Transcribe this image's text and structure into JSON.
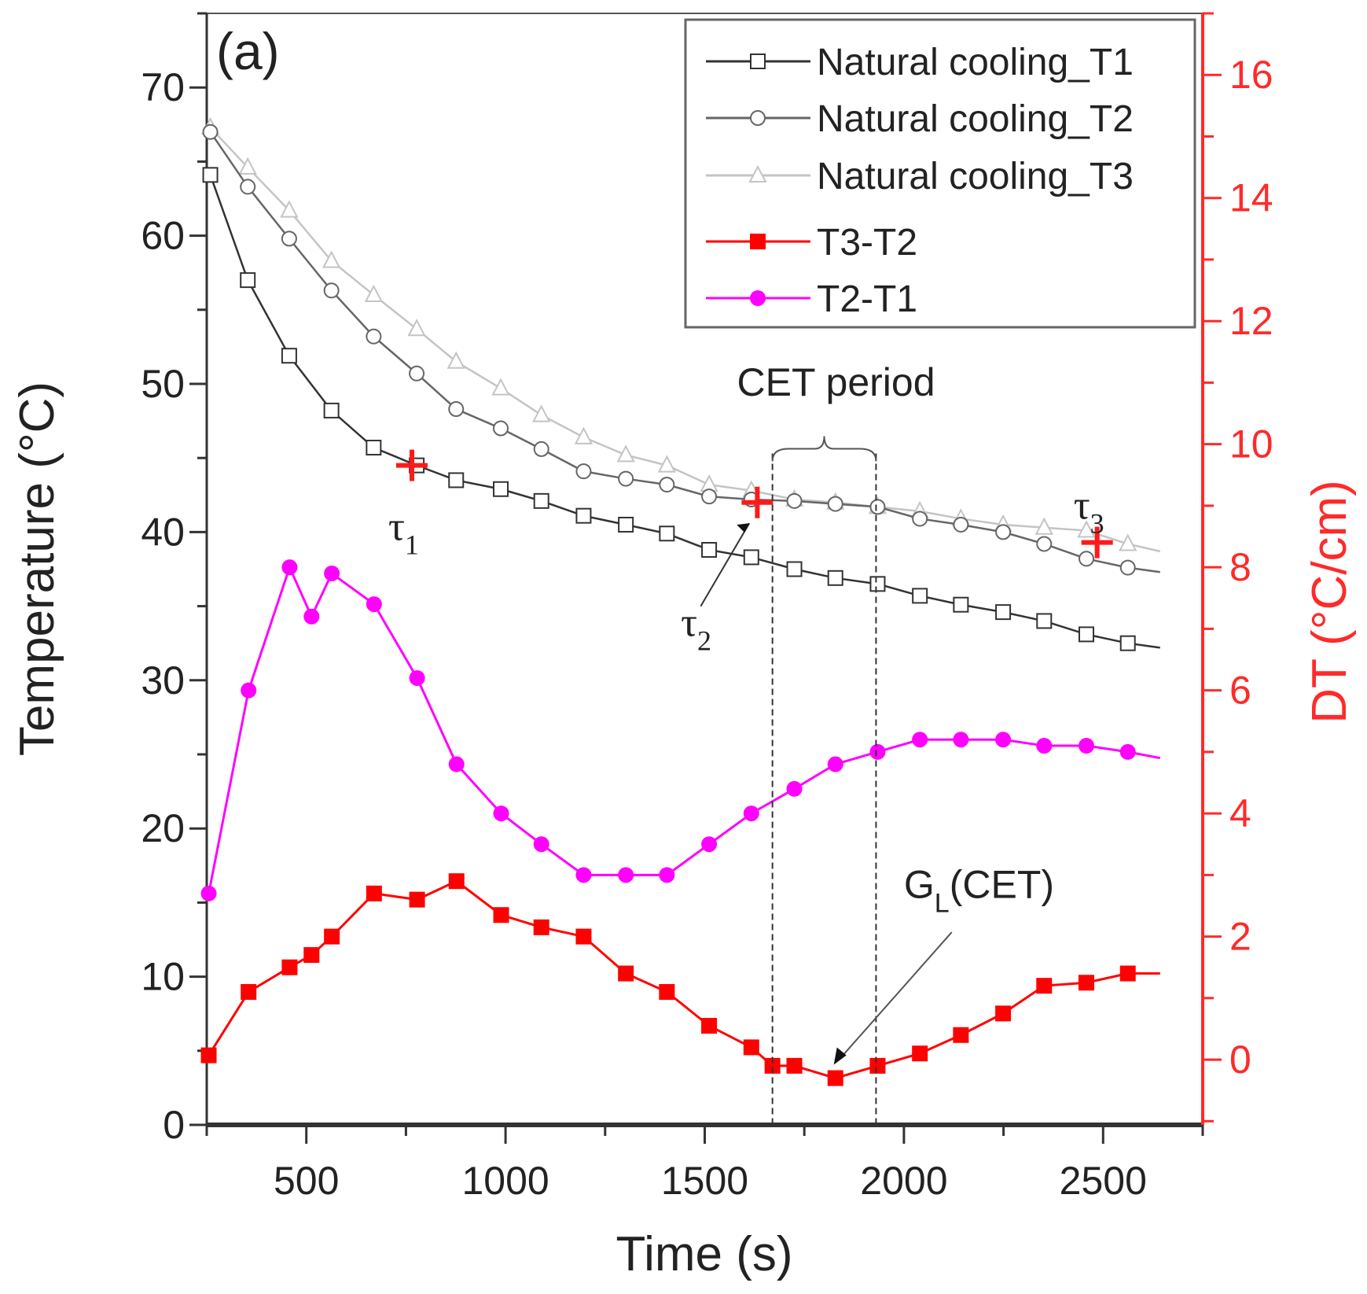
{
  "chart_data": {
    "type": "line",
    "panel_label": "(a)",
    "xlabel": "Time (s)",
    "ylabel": "Temperature (°C)",
    "y2label": "DT (°C/cm)",
    "xlim": [
      250,
      2750
    ],
    "ylim": [
      0,
      75
    ],
    "y2lim": [
      -1.06,
      17
    ],
    "xticks": [
      500,
      1000,
      1500,
      2000,
      2500
    ],
    "yticks": [
      0,
      10,
      20,
      30,
      40,
      50,
      60,
      70
    ],
    "y2ticks": [
      0,
      2,
      4,
      6,
      8,
      10,
      12,
      14,
      16
    ],
    "legend_position": "top-right",
    "x": [
      259,
      353,
      457,
      563,
      669,
      777,
      876,
      988,
      1090,
      1196,
      1302,
      1405,
      1511,
      1617,
      1725,
      1828,
      1934,
      2040,
      2143,
      2249,
      2352,
      2458,
      2562,
      2643
    ],
    "series": [
      {
        "name": "Natural cooling_T1",
        "axis": "left",
        "color": "#333333",
        "marker": "square",
        "values": [
          64.1,
          57,
          51.9,
          48.2,
          45.7,
          44.5,
          43.5,
          42.9,
          42.1,
          41.1,
          40.5,
          39.9,
          38.8,
          38.3,
          37.5,
          36.9,
          36.5,
          35.7,
          35.1,
          34.6,
          34,
          33.1,
          32.5,
          32.2
        ]
      },
      {
        "name": "Natural cooling_T2",
        "axis": "left",
        "color": "#666666",
        "marker": "circle",
        "values": [
          67,
          63.3,
          59.8,
          56.3,
          53.2,
          50.7,
          48.3,
          47,
          45.6,
          44.1,
          43.6,
          43.2,
          42.4,
          42.2,
          42.1,
          41.9,
          41.7,
          40.9,
          40.5,
          40,
          39.2,
          38.2,
          37.6,
          37.3
        ]
      },
      {
        "name": "Natural cooling_T3",
        "axis": "left",
        "color": "#c4c4c4",
        "marker": "triangle",
        "values": [
          67.3,
          64.6,
          61.7,
          58.3,
          56,
          53.7,
          51.5,
          49.7,
          47.9,
          46.4,
          45.2,
          44.5,
          43.2,
          42.8,
          42.2,
          42,
          41.7,
          41.4,
          40.9,
          40.5,
          40.3,
          40.1,
          39.2,
          38.7
        ]
      },
      {
        "name": "T3-T2",
        "axis": "right",
        "color": "#ff0000",
        "marker": "filled-square",
        "x": [
          255,
          355,
          458,
          513,
          564,
          670,
          778,
          877,
          989,
          1090,
          1196,
          1302,
          1405,
          1511,
          1617,
          1670,
          1725,
          1828,
          1934,
          2040,
          2143,
          2249,
          2352,
          2458,
          2562,
          2643
        ],
        "values": [
          0.07,
          1.1,
          1.5,
          1.7,
          2.0,
          2.7,
          2.6,
          2.9,
          2.35,
          2.15,
          2.0,
          1.4,
          1.1,
          0.55,
          0.2,
          -0.1,
          -0.1,
          -0.3,
          -0.1,
          0.1,
          0.4,
          0.75,
          1.2,
          1.25,
          1.4,
          1.4
        ]
      },
      {
        "name": "T2-T1",
        "axis": "right",
        "color": "#ff00ff",
        "marker": "filled-circle",
        "x": [
          255,
          355,
          458,
          513,
          564,
          670,
          778,
          877,
          989,
          1090,
          1196,
          1302,
          1405,
          1511,
          1617,
          1725,
          1828,
          1934,
          2040,
          2143,
          2249,
          2352,
          2458,
          2562,
          2643
        ],
        "values": [
          2.7,
          6.0,
          8.0,
          7.2,
          7.9,
          7.4,
          6.2,
          4.8,
          4.0,
          3.5,
          3.0,
          3.0,
          3.0,
          3.5,
          4.0,
          4.4,
          4.8,
          5.0,
          5.2,
          5.2,
          5.2,
          5.1,
          5.1,
          5.0,
          4.9
        ]
      }
    ],
    "annotations": {
      "tau1": {
        "label": "τ",
        "sub": "1",
        "x": 765,
        "y": 44.5
      },
      "tau2": {
        "label": "τ",
        "sub": "2",
        "x": 1632,
        "y": 42.0
      },
      "tau3": {
        "label": "τ",
        "sub": "3",
        "x": 2485,
        "y": 39.3
      },
      "cet_period": {
        "label": "CET period",
        "x_start": 1670,
        "x_end": 1930
      },
      "gl_cet": {
        "label_main": "G",
        "label_sub": "L",
        "label_rest": "(CET)",
        "x": 1824,
        "y2": -0.3
      }
    }
  }
}
